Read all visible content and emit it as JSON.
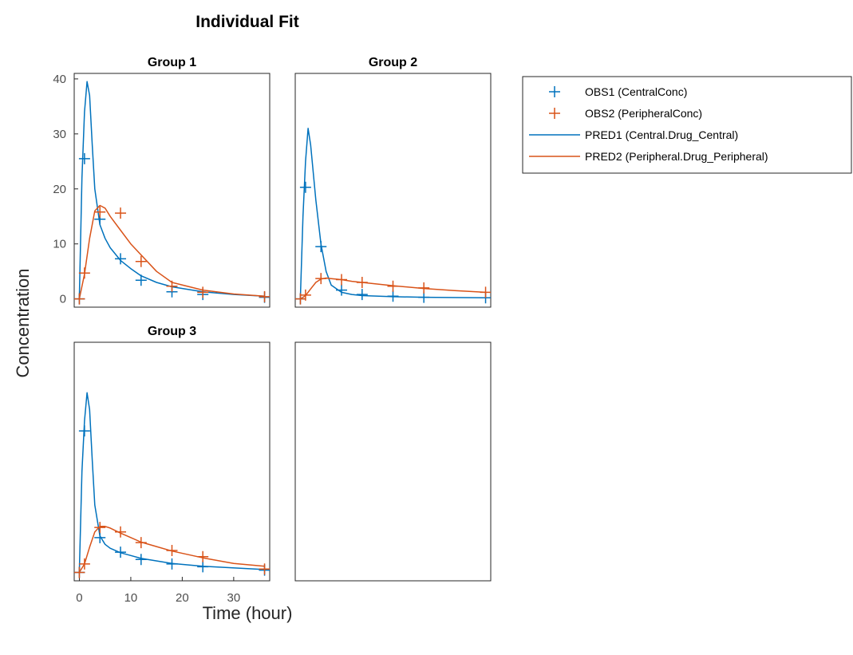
{
  "figure": {
    "title": "Individual Fit",
    "xlabel": "Time (hour)",
    "ylabel": "Concentration"
  },
  "colors": {
    "obs1": "#0072BD",
    "obs2": "#D95319",
    "axis": "#262626",
    "tick": "#4d4d4d"
  },
  "legend": {
    "placement": "right",
    "entries": [
      {
        "label": "OBS1 (CentralConc)",
        "style": "marker-plus",
        "color": "#0072BD"
      },
      {
        "label": "OBS2 (PeripheralConc)",
        "style": "marker-plus",
        "color": "#D95319"
      },
      {
        "label": "PRED1 (Central.Drug_Central)",
        "style": "line",
        "color": "#0072BD"
      },
      {
        "label": "PRED2 (Peripheral.Drug_Peripheral)",
        "style": "line",
        "color": "#D95319"
      }
    ]
  },
  "chart_data": [
    {
      "type": "line",
      "title": "Group 1",
      "xlim": [
        -1,
        37
      ],
      "ylim": [
        -1.5,
        41
      ],
      "yticks": [
        0,
        10,
        20,
        30,
        40
      ],
      "xticks": [],
      "series": [
        {
          "name": "OBS1 (CentralConc)",
          "kind": "scatter",
          "x": [
            0,
            1,
            4,
            8,
            12,
            18,
            24,
            36
          ],
          "y": [
            0,
            25.5,
            14.5,
            7.3,
            3.4,
            1.3,
            0.8,
            0.3
          ]
        },
        {
          "name": "OBS2 (PeripheralConc)",
          "kind": "scatter",
          "x": [
            0,
            1,
            4,
            8,
            12,
            18,
            24,
            36
          ],
          "y": [
            0,
            4.7,
            15.8,
            15.6,
            6.8,
            2.3,
            1.2,
            0.4
          ]
        },
        {
          "name": "PRED1 (Central.Drug_Central)",
          "kind": "line",
          "x": [
            0,
            0.5,
            1,
            1.5,
            2,
            2.5,
            3,
            4,
            5,
            6,
            8,
            10,
            12,
            15,
            18,
            24,
            30,
            36
          ],
          "y": [
            0,
            22,
            34,
            39.5,
            37,
            28,
            20,
            13.5,
            11,
            9.3,
            7,
            5.5,
            4.2,
            3,
            2.2,
            1.3,
            0.8,
            0.5
          ]
        },
        {
          "name": "PRED2 (Peripheral.Drug_Peripheral)",
          "kind": "line",
          "x": [
            0,
            1,
            2,
            3,
            4,
            5,
            6,
            8,
            10,
            12,
            15,
            18,
            24,
            30,
            36
          ],
          "y": [
            0,
            4.5,
            11,
            16,
            17,
            16.5,
            15,
            12.5,
            10,
            8,
            5,
            3,
            1.6,
            0.9,
            0.5
          ]
        }
      ]
    },
    {
      "type": "line",
      "title": "Group 2",
      "xlim": [
        -1,
        37
      ],
      "ylim": [
        -1.5,
        41
      ],
      "yticks": [],
      "xticks": [],
      "series": [
        {
          "name": "OBS1 (CentralConc)",
          "kind": "scatter",
          "x": [
            0,
            1,
            4,
            8,
            12,
            18,
            24,
            36
          ],
          "y": [
            0,
            20.3,
            9.5,
            1.6,
            0.8,
            0.5,
            0.3,
            0.2
          ]
        },
        {
          "name": "OBS2 (PeripheralConc)",
          "kind": "scatter",
          "x": [
            0,
            1,
            4,
            8,
            12,
            18,
            24,
            36
          ],
          "y": [
            0,
            0.7,
            3.7,
            3.5,
            3.0,
            2.3,
            2.0,
            1.2
          ]
        },
        {
          "name": "PRED1 (Central.Drug_Central)",
          "kind": "line",
          "x": [
            0,
            0.5,
            1,
            1.5,
            2,
            3,
            4,
            5,
            6,
            8,
            10,
            12,
            18,
            24,
            36
          ],
          "y": [
            0,
            15,
            25,
            31,
            28,
            18,
            10,
            5,
            2.5,
            1.2,
            0.8,
            0.6,
            0.4,
            0.3,
            0.2
          ]
        },
        {
          "name": "PRED2 (Peripheral.Drug_Peripheral)",
          "kind": "line",
          "x": [
            0,
            1,
            2,
            3,
            4,
            5,
            6,
            8,
            10,
            12,
            18,
            24,
            30,
            36
          ],
          "y": [
            0,
            0.6,
            1.8,
            3,
            3.6,
            3.8,
            3.7,
            3.5,
            3.2,
            3,
            2.4,
            1.9,
            1.5,
            1.2
          ]
        }
      ]
    },
    {
      "type": "line",
      "title": "Group 3",
      "xlim": [
        -1,
        37
      ],
      "ylim": [
        -1.5,
        41
      ],
      "yticks": [],
      "xticks": [
        0,
        10,
        20,
        30
      ],
      "series": [
        {
          "name": "OBS1 (CentralConc)",
          "kind": "scatter",
          "x": [
            0,
            1,
            4,
            8,
            12,
            18,
            24,
            36
          ],
          "y": [
            0,
            25.2,
            6.2,
            3.6,
            2.3,
            1.5,
            1.0,
            0.4
          ]
        },
        {
          "name": "OBS2 (PeripheralConc)",
          "kind": "scatter",
          "x": [
            0,
            1,
            4,
            8,
            12,
            18,
            24,
            36
          ],
          "y": [
            0,
            1.5,
            8.0,
            7.2,
            5.3,
            3.9,
            2.8,
            0.6
          ]
        },
        {
          "name": "PRED1 (Central.Drug_Central)",
          "kind": "line",
          "x": [
            0,
            0.5,
            1,
            1.5,
            2,
            2.5,
            3,
            4,
            5,
            6,
            8,
            10,
            12,
            18,
            24,
            36
          ],
          "y": [
            0,
            18,
            27,
            32,
            29,
            20,
            12,
            6.5,
            5,
            4.3,
            3.5,
            3,
            2.5,
            1.6,
            1.1,
            0.5
          ]
        },
        {
          "name": "PRED2 (Peripheral.Drug_Peripheral)",
          "kind": "line",
          "x": [
            0,
            1,
            2,
            3,
            4,
            5,
            6,
            8,
            10,
            12,
            15,
            18,
            24,
            30,
            36
          ],
          "y": [
            0,
            1.5,
            4.5,
            7.2,
            8.2,
            8.2,
            7.9,
            7,
            6.2,
            5.4,
            4.6,
            3.8,
            2.6,
            1.6,
            1.1
          ]
        }
      ]
    },
    {
      "type": "line",
      "title": "",
      "xlim": [
        -1,
        37
      ],
      "ylim": [
        -1.5,
        41
      ],
      "yticks": [],
      "xticks": [],
      "series": []
    }
  ]
}
